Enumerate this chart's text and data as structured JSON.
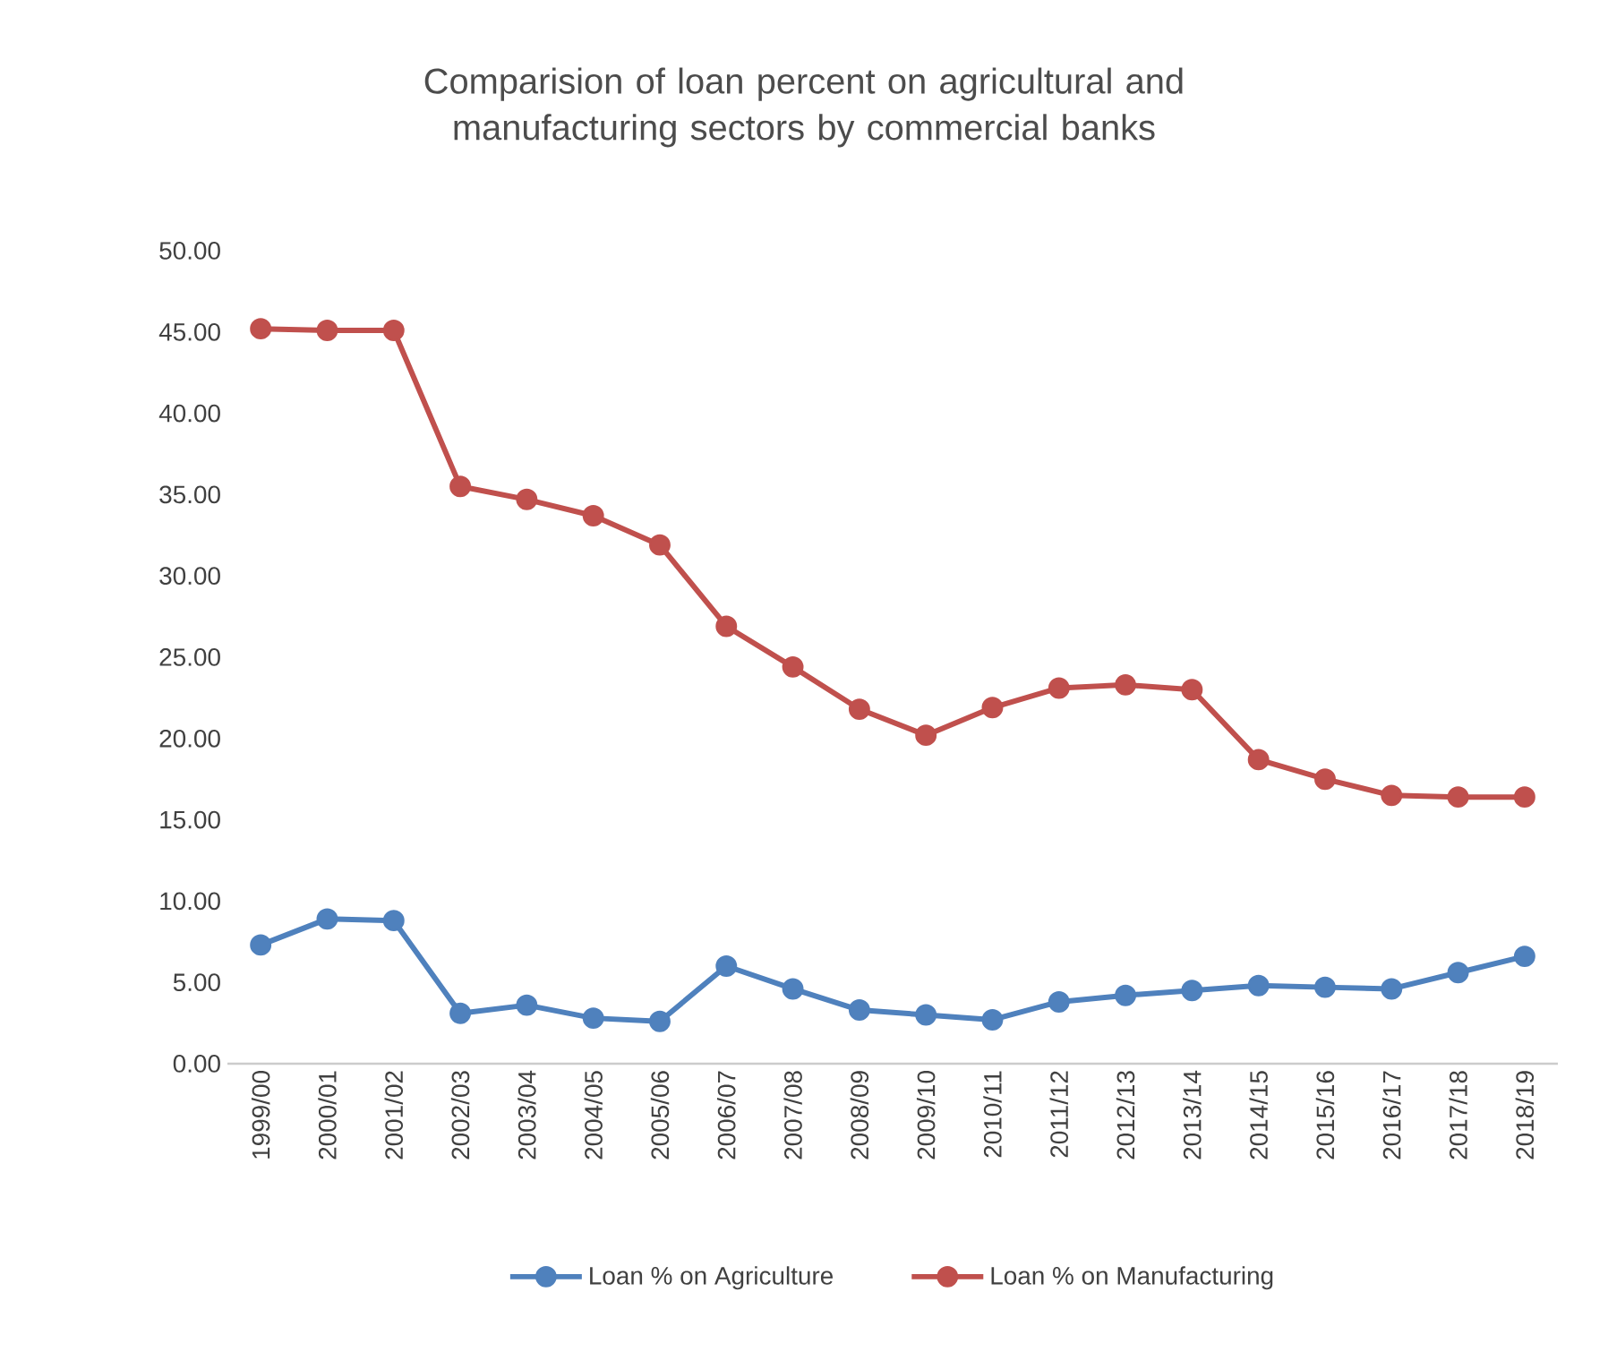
{
  "chart_data": {
    "type": "line",
    "title": "Comparision of loan percent on agricultural and manufacturing sectors by commercial banks",
    "categories": [
      "1999/00",
      "2000/01",
      "2001/02",
      "2002/03",
      "2003/04",
      "2004/05",
      "2005/06",
      "2006/07",
      "2007/08",
      "2008/09",
      "2009/10",
      "2010/11",
      "2011/12",
      "2012/13",
      "2013/14",
      "2014/15",
      "2015/16",
      "2016/17",
      "2017/18",
      "2018/19"
    ],
    "series": [
      {
        "name": "Loan % on Agriculture",
        "color": "#4f81bd",
        "values": [
          7.3,
          8.9,
          8.8,
          3.1,
          3.6,
          2.8,
          2.6,
          6.0,
          4.6,
          3.3,
          3.0,
          2.7,
          3.8,
          4.2,
          4.5,
          4.8,
          4.7,
          4.6,
          5.6,
          6.6
        ]
      },
      {
        "name": "Loan % on Manufacturing",
        "color": "#c0504d",
        "values": [
          45.2,
          45.1,
          45.1,
          35.5,
          34.7,
          33.7,
          31.9,
          26.9,
          24.4,
          21.8,
          20.2,
          21.9,
          23.1,
          23.3,
          23.0,
          18.7,
          17.5,
          16.5,
          16.4,
          16.4
        ]
      }
    ],
    "ylim": [
      0,
      50
    ],
    "yticks": [
      {
        "value": 0,
        "label": "0.00"
      },
      {
        "value": 5,
        "label": "5.00"
      },
      {
        "value": 10,
        "label": "10.00"
      },
      {
        "value": 15,
        "label": "15.00"
      },
      {
        "value": 20,
        "label": "20.00"
      },
      {
        "value": 25,
        "label": "25.00"
      },
      {
        "value": 30,
        "label": "30.00"
      },
      {
        "value": 35,
        "label": "35.00"
      },
      {
        "value": 40,
        "label": "40.00"
      },
      {
        "value": 45,
        "label": "45.00"
      },
      {
        "value": 50,
        "label": "50.00"
      }
    ],
    "legend": "bottom",
    "marker": "circle"
  }
}
